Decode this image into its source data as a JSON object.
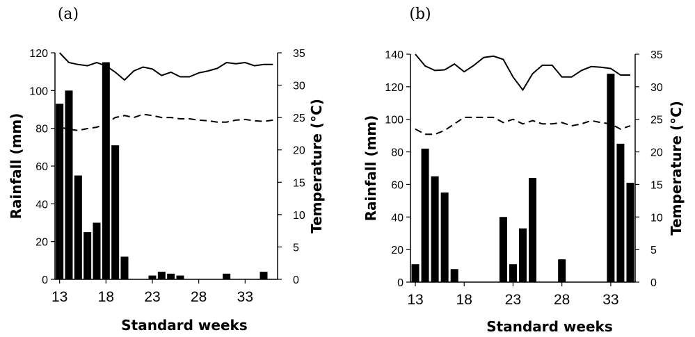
{
  "chart_data": [
    {
      "type": "bar",
      "panel_label": "(a)",
      "xlabel": "Standard weeks",
      "ylabel": "Rainfall   (mm)",
      "y2label": "Temperature (°C)",
      "xlim": [
        12.5,
        36.5
      ],
      "ylim": [
        0,
        120
      ],
      "y2lim": [
        0,
        35
      ],
      "xticks": [
        13,
        18,
        23,
        28,
        33
      ],
      "yticks": [
        0,
        20,
        40,
        60,
        80,
        100,
        120
      ],
      "y2ticks": [
        0,
        5,
        10,
        15,
        20,
        25,
        30,
        35
      ],
      "grid": false,
      "series": [
        {
          "type": "bar",
          "axis": "left",
          "weeks": [
            13,
            14,
            15,
            16,
            17,
            18,
            19,
            20,
            23,
            24,
            25,
            26,
            31,
            35
          ],
          "values": [
            93,
            100,
            55,
            25,
            30,
            115,
            71,
            12,
            2,
            4,
            3,
            2,
            3,
            4
          ]
        },
        {
          "type": "line",
          "style": "solid",
          "axis": "right",
          "weeks": [
            13,
            14,
            15,
            16,
            17,
            18,
            19,
            20,
            21,
            22,
            23,
            24,
            25,
            26,
            27,
            28,
            29,
            30,
            31,
            32,
            33,
            34,
            35,
            36
          ],
          "values": [
            35,
            33.5,
            33.2,
            33,
            33.5,
            33,
            32,
            30.8,
            32.2,
            32.8,
            32.5,
            31.5,
            32,
            31.3,
            31.3,
            31.9,
            32.2,
            32.6,
            33.5,
            33.3,
            33.5,
            33,
            33.2,
            33.2
          ]
        },
        {
          "type": "line",
          "style": "dashed",
          "axis": "right",
          "weeks": [
            13,
            14,
            15,
            16,
            17,
            18,
            19,
            20,
            21,
            22,
            23,
            24,
            25,
            26,
            27,
            28,
            29,
            30,
            31,
            32,
            33,
            34,
            35,
            36
          ],
          "values": [
            23.5,
            23.2,
            23.0,
            23.3,
            23.5,
            24.0,
            25.0,
            25.3,
            25.0,
            25.5,
            25.3,
            25.0,
            25.0,
            24.8,
            24.8,
            24.6,
            24.5,
            24.3,
            24.3,
            24.6,
            24.7,
            24.5,
            24.4,
            24.6
          ]
        }
      ]
    },
    {
      "type": "bar",
      "panel_label": "(b)",
      "xlabel": "Standard weeks",
      "ylabel": "Rainfall   (mm)",
      "y2label": "Temperature (°C)",
      "xlim": [
        12.5,
        35.5
      ],
      "ylim": [
        0,
        140
      ],
      "y2lim": [
        0,
        35
      ],
      "xticks": [
        13,
        18,
        23,
        28,
        33
      ],
      "yticks": [
        0,
        20,
        40,
        60,
        80,
        100,
        120,
        140
      ],
      "y2ticks": [
        0,
        5,
        10,
        15,
        20,
        25,
        30,
        35
      ],
      "grid": false,
      "series": [
        {
          "type": "bar",
          "axis": "left",
          "weeks": [
            13,
            14,
            15,
            16,
            17,
            22,
            23,
            24,
            25,
            28,
            33,
            34,
            35
          ],
          "values": [
            11,
            82,
            65,
            55,
            8,
            40,
            11,
            33,
            64,
            14,
            128,
            85,
            61
          ]
        },
        {
          "type": "line",
          "style": "solid",
          "axis": "right",
          "weeks": [
            13,
            14,
            15,
            16,
            17,
            18,
            19,
            20,
            21,
            22,
            23,
            24,
            25,
            26,
            27,
            28,
            29,
            30,
            31,
            32,
            33,
            34,
            35
          ],
          "values": [
            35,
            33.2,
            32.5,
            32.6,
            33.5,
            32.3,
            33.3,
            34.5,
            34.7,
            34.2,
            31.5,
            29.5,
            32.0,
            33.3,
            33.3,
            31.5,
            31.5,
            32.5,
            33.1,
            33.0,
            32.8,
            31.8,
            31.8
          ]
        },
        {
          "type": "line",
          "style": "dashed",
          "axis": "right",
          "weeks": [
            13,
            14,
            15,
            16,
            17,
            18,
            19,
            20,
            21,
            22,
            23,
            24,
            25,
            26,
            27,
            28,
            29,
            30,
            31,
            32,
            33,
            34,
            35
          ],
          "values": [
            23.5,
            22.7,
            22.7,
            23.3,
            24.3,
            25.3,
            25.3,
            25.3,
            25.3,
            24.5,
            25.0,
            24.3,
            24.8,
            24.3,
            24.3,
            24.5,
            24.0,
            24.3,
            24.8,
            24.5,
            24.3,
            23.5,
            24.0
          ]
        }
      ]
    }
  ]
}
